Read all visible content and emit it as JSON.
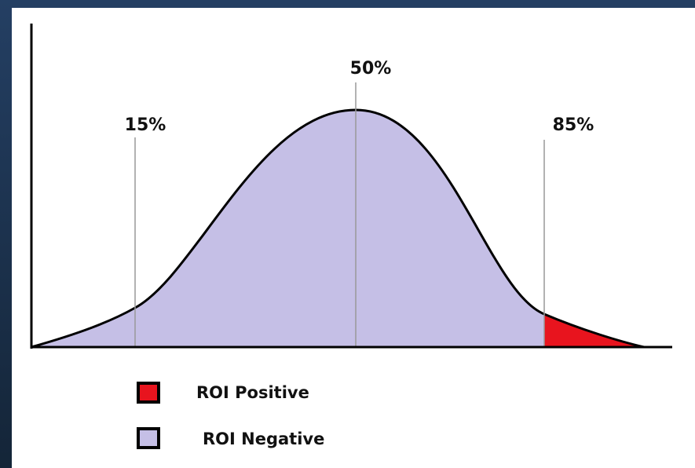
{
  "markers": [
    {
      "label": "15%"
    },
    {
      "label": "50%"
    },
    {
      "label": "85%"
    }
  ],
  "legend": [
    {
      "label": "ROI Positive",
      "color": "#e8141e"
    },
    {
      "label": "ROI Negative",
      "color": "#c5bfe6"
    }
  ]
}
